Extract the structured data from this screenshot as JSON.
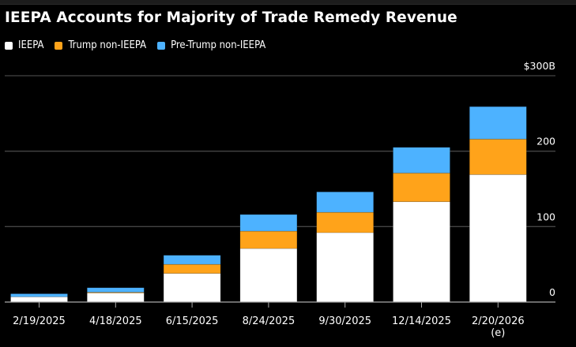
{
  "chart_data": {
    "type": "bar",
    "stacked": true,
    "title": "IEEPA Accounts for Majority of Trade Remedy Revenue",
    "xlabel": "",
    "ylabel": "",
    "categories": [
      "2/19/2025",
      "4/18/2025",
      "6/15/2025",
      "8/24/2025",
      "9/30/2025",
      "12/14/2025",
      "2/20/2026"
    ],
    "category_notes": [
      "",
      "",
      "",
      "",
      "",
      "",
      "(e)"
    ],
    "series": [
      {
        "name": "IEEPA",
        "color": "#ffffff",
        "values": [
          7,
          12,
          38,
          71,
          92,
          133,
          169
        ]
      },
      {
        "name": "Trump non-IEEPA",
        "color": "#ffa31a",
        "values": [
          0,
          1,
          12,
          23,
          27,
          38,
          47
        ]
      },
      {
        "name": "Pre-Trump non-IEEPA",
        "color": "#4db2ff",
        "values": [
          4,
          6,
          12,
          22,
          27,
          34,
          43
        ]
      }
    ],
    "ylim": [
      0,
      300
    ],
    "yticks": [
      0,
      100,
      200,
      300
    ],
    "ytick_labels": [
      "0",
      "100",
      "200",
      "$300B"
    ],
    "y_axis_side": "right",
    "grid": true,
    "legend_position": "top-left"
  },
  "colors": {
    "background": "#000000",
    "gridline": "#444444",
    "axis": "#aaaaaa"
  }
}
